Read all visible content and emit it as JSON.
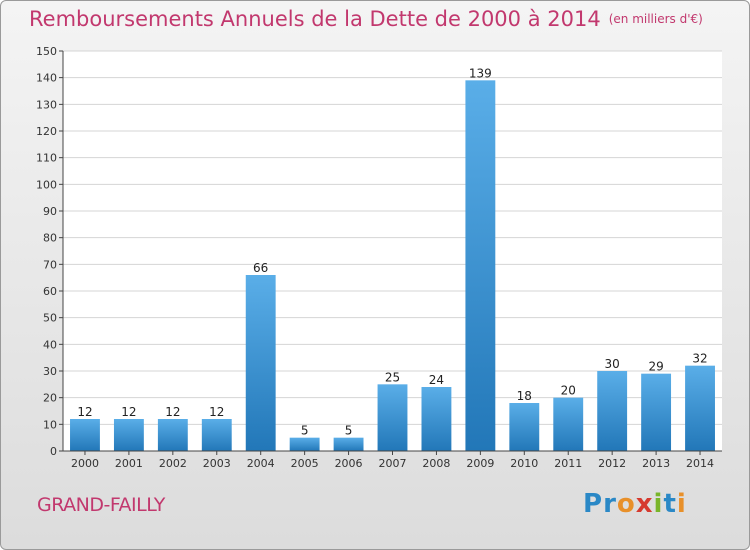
{
  "header": {
    "title": "Remboursements Annuels de la Dette de 2000 à 2014",
    "unit": "(en milliers d'€)"
  },
  "footer": {
    "town": "GRAND-FAILLY",
    "logo_letters": [
      "P",
      "r",
      "o",
      "x",
      "i",
      "t",
      "i"
    ],
    "logo_colors": [
      "#2a88c6",
      "#2a88c6",
      "#e8902a",
      "#d63a2f",
      "#79b52a",
      "#2a88c6",
      "#e8902a"
    ]
  },
  "colors": {
    "title": "#c2386e",
    "bar_top": "#5aaee8",
    "bar_bottom": "#2277b8",
    "grid": "#d4d4d4",
    "axis": "#444444"
  },
  "chart_data": {
    "type": "bar",
    "categories": [
      "2000",
      "2001",
      "2002",
      "2003",
      "2004",
      "2005",
      "2006",
      "2007",
      "2008",
      "2009",
      "2010",
      "2011",
      "2012",
      "2013",
      "2014"
    ],
    "values": [
      12,
      12,
      12,
      12,
      66,
      5,
      5,
      25,
      24,
      139,
      18,
      20,
      30,
      29,
      32
    ],
    "ylim": [
      0,
      150
    ],
    "yticks": [
      0,
      10,
      20,
      30,
      40,
      50,
      60,
      70,
      80,
      90,
      100,
      110,
      120,
      130,
      140,
      150
    ],
    "grid": true,
    "data_labels": true
  }
}
